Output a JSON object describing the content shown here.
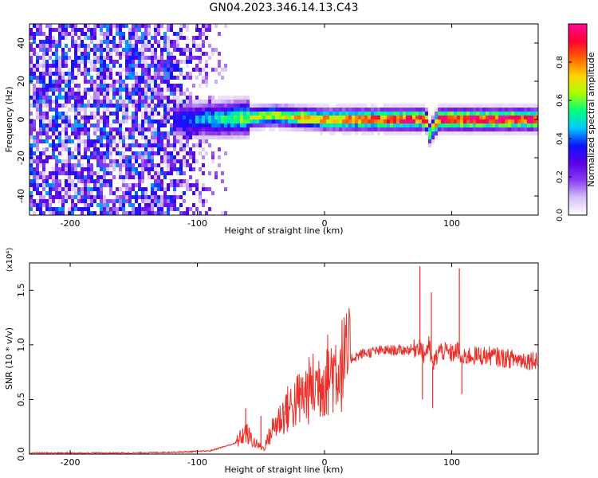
{
  "figure": {
    "title": "GN04.2023.346.14.13.C43"
  },
  "chart_data": [
    {
      "type": "heatmap",
      "xlabel": "Height of straight line (km)",
      "ylabel": "Frequency (Hz)",
      "xlim": [
        -232,
        168
      ],
      "ylim": [
        -50,
        50
      ],
      "xticks": [
        -200,
        -100,
        0,
        100
      ],
      "yticks": [
        -40,
        -20,
        0,
        20,
        40
      ],
      "grid": false,
      "colorbar": {
        "label": "Normalized spectral amplitude",
        "range": [
          0,
          1
        ],
        "ticks": [
          "0.0",
          "0.2",
          "0.4",
          "0.6",
          "0.8"
        ],
        "colormap": [
          "#ffffff",
          "#d8c0f8",
          "#8a3cf0",
          "#5a00e6",
          "#0a14ff",
          "#00c8ff",
          "#00ff80",
          "#aaff00",
          "#ffd400",
          "#ff6600",
          "#ff0033",
          "#ff0a9a"
        ]
      },
      "noise_region": {
        "x": [
          -232,
          -75
        ],
        "y": [
          -50,
          50
        ]
      },
      "signal_ridge": {
        "x": [
          -120,
          -100,
          -80,
          -60,
          -40,
          -20,
          0,
          20,
          40,
          60,
          70,
          80,
          82,
          90,
          100,
          120,
          140,
          168
        ],
        "frequency": [
          0,
          0,
          0,
          1,
          2,
          1,
          0,
          0,
          0,
          0,
          0,
          0,
          -8,
          0,
          0,
          0,
          0,
          0
        ],
        "peak_amplitude": [
          0.35,
          0.45,
          0.55,
          0.65,
          0.7,
          0.75,
          0.8,
          0.85,
          0.9,
          0.95,
          0.95,
          0.9,
          0.6,
          0.95,
          1.0,
          1.0,
          1.0,
          0.95
        ]
      }
    },
    {
      "type": "line",
      "xlabel": "Height of straight line (km)",
      "ylabel": "SNR (10 * v/v)",
      "y_multiplier": "(x10⁴)",
      "xlim": [
        -232,
        168
      ],
      "ylim": [
        0,
        1.75
      ],
      "xticks": [
        -200,
        -100,
        0,
        100
      ],
      "yticks": [
        "0.0",
        "0.5",
        "1.0",
        "1.5"
      ],
      "grid": false,
      "series": [
        {
          "color": "#e8312a",
          "x": [
            -232,
            -200,
            -150,
            -110,
            -90,
            -70,
            -62,
            -55,
            -48,
            -40,
            -30,
            -20,
            -10,
            0,
            10,
            20,
            30,
            40,
            50,
            60,
            70,
            75,
            78,
            82,
            85,
            90,
            100,
            105,
            108,
            112,
            120,
            130,
            140,
            150,
            160,
            168
          ],
          "y": [
            0.01,
            0.01,
            0.01,
            0.02,
            0.03,
            0.1,
            0.2,
            0.1,
            0.05,
            0.25,
            0.4,
            0.5,
            0.6,
            0.7,
            0.8,
            0.87,
            0.92,
            0.94,
            0.95,
            0.95,
            0.96,
            1.0,
            0.9,
            1.0,
            0.8,
            0.95,
            0.92,
            0.95,
            0.85,
            0.9,
            0.9,
            0.9,
            0.88,
            0.87,
            0.86,
            0.87
          ],
          "spikes": [
            {
              "x": -62,
              "y": 0.42
            },
            {
              "x": -50,
              "y": 0.35
            },
            {
              "x": -30,
              "y": 0.55
            },
            {
              "x": -20,
              "y": 0.62
            },
            {
              "x": -10,
              "y": 0.72
            },
            {
              "x": 75,
              "y": 1.72
            },
            {
              "x": 77,
              "y": 0.5
            },
            {
              "x": 84,
              "y": 1.48
            },
            {
              "x": 85,
              "y": 0.42
            },
            {
              "x": 106,
              "y": 1.7
            },
            {
              "x": 108,
              "y": 0.55
            }
          ]
        }
      ]
    }
  ]
}
